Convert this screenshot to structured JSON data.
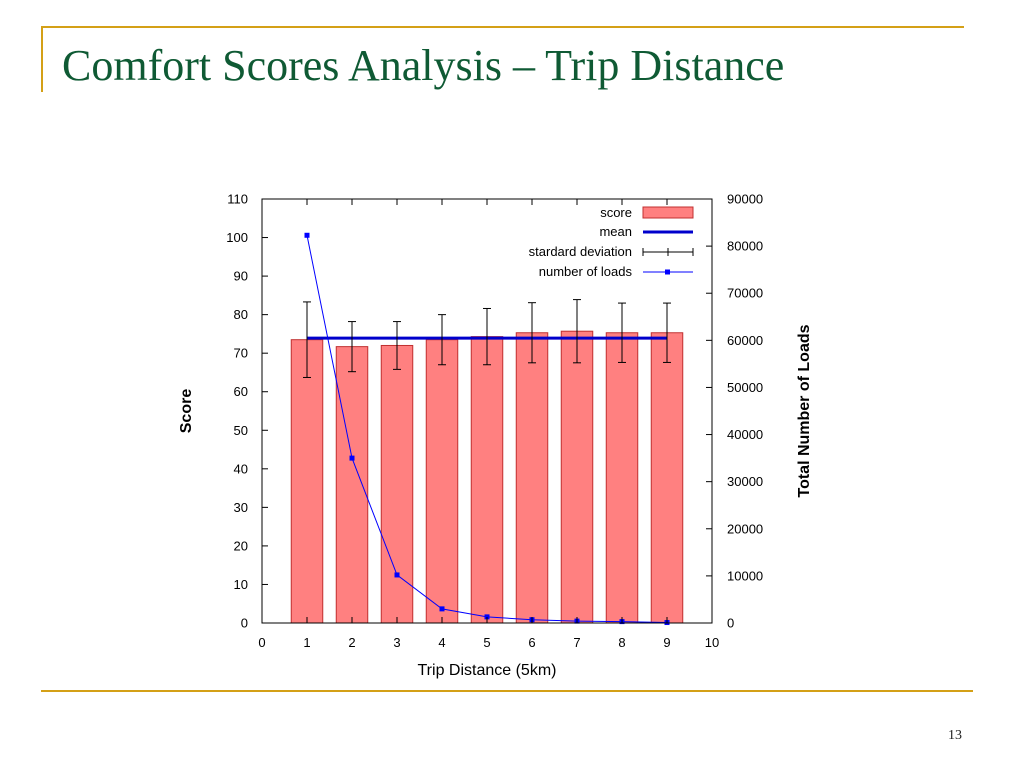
{
  "slide": {
    "title": "Comfort Scores Analysis – Trip Distance",
    "page_number": "13"
  },
  "colors": {
    "accent": "#d4a017",
    "title": "#0f5a34",
    "bar_fill": "#ff8080",
    "bar_stroke": "#c03030",
    "mean_line": "#0000cc",
    "loads_line": "#0000ff"
  },
  "chart_data": {
    "type": "bar",
    "title": "",
    "xlabel": "Trip Distance (5km)",
    "ylabel": "Score",
    "y2label": "Total Number of Loads",
    "xlim": [
      0,
      10
    ],
    "ylim": [
      0,
      110
    ],
    "y2lim": [
      0,
      90000
    ],
    "x_ticks": [
      0,
      1,
      2,
      3,
      4,
      5,
      6,
      7,
      8,
      9,
      10
    ],
    "y_ticks": [
      0,
      10,
      20,
      30,
      40,
      50,
      60,
      70,
      80,
      90,
      100,
      110
    ],
    "y2_ticks": [
      0,
      10000,
      20000,
      30000,
      40000,
      50000,
      60000,
      70000,
      80000,
      90000
    ],
    "grid": false,
    "legend_position": "top-right",
    "legend": [
      "score",
      "mean",
      "stardard deviation",
      "number of loads"
    ],
    "x": [
      1,
      2,
      3,
      4,
      5,
      6,
      7,
      8,
      9
    ],
    "series": [
      {
        "name": "score",
        "kind": "bar",
        "axis": "left",
        "values": [
          73.5,
          71.7,
          72.0,
          73.5,
          74.3,
          75.3,
          75.7,
          75.3,
          75.3
        ]
      },
      {
        "name": "stardard deviation",
        "kind": "errorbar",
        "axis": "left",
        "values": [
          9.8,
          6.5,
          6.2,
          6.5,
          7.3,
          7.8,
          8.2,
          7.7,
          7.7
        ]
      },
      {
        "name": "mean",
        "kind": "hline",
        "axis": "left",
        "value": 73.9,
        "x_range": [
          1,
          9
        ]
      },
      {
        "name": "number of loads",
        "kind": "line",
        "axis": "right",
        "values": [
          82300,
          35000,
          10200,
          3000,
          1300,
          700,
          400,
          300,
          100
        ]
      }
    ]
  }
}
